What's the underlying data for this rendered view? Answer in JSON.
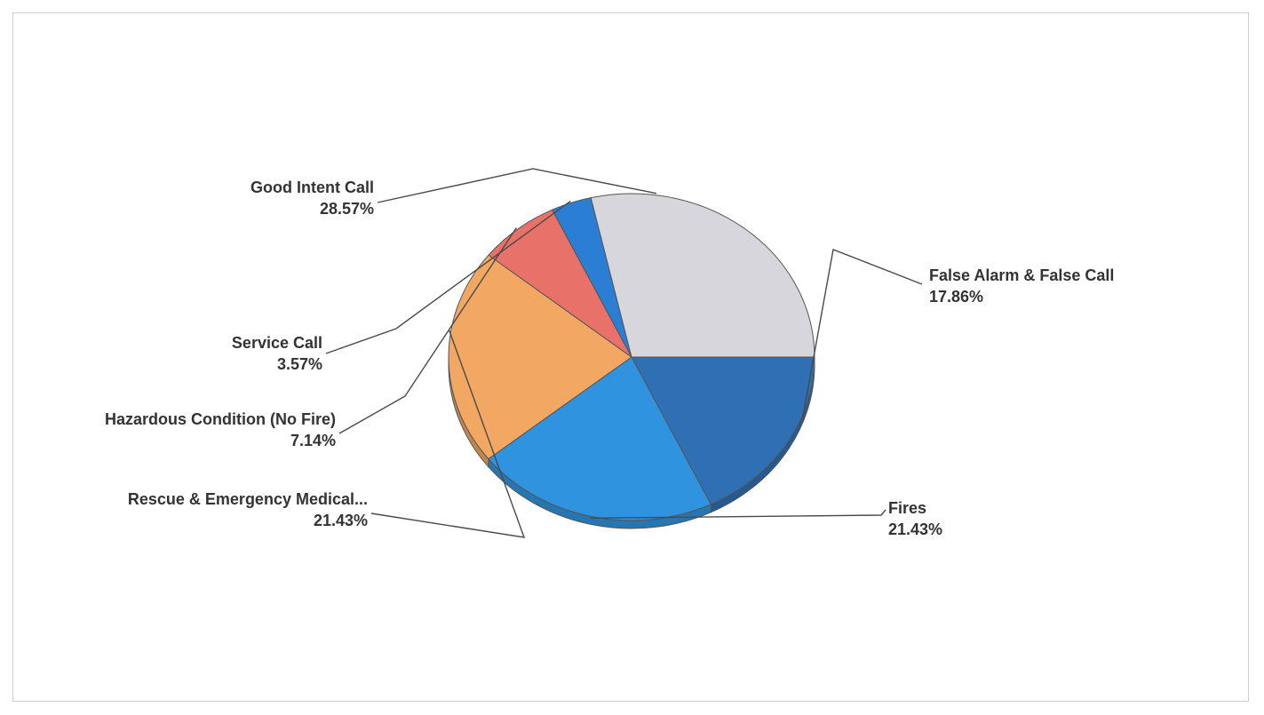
{
  "chart_data": {
    "type": "pie",
    "title": "",
    "slices": [
      {
        "label": "False Alarm & False Call",
        "value": 17.86,
        "pct_label": "17.86%",
        "color": "#2f6fb3"
      },
      {
        "label": "Fires",
        "value": 21.43,
        "pct_label": "21.43%",
        "color": "#2f93df"
      },
      {
        "label": "Rescue & Emergency Medical...",
        "value": 21.43,
        "pct_label": "21.43%",
        "color": "#f2a863"
      },
      {
        "label": "Hazardous Condition (No Fire)",
        "value": 7.14,
        "pct_label": "7.14%",
        "color": "#e8726a"
      },
      {
        "label": "Service Call",
        "value": 3.57,
        "pct_label": "3.57%",
        "color": "#2a7fd4"
      },
      {
        "label": "Good Intent Call",
        "value": 28.57,
        "pct_label": "28.57%",
        "color": "#d6d6dc"
      }
    ],
    "start_angle": "east, clockwise",
    "legend": "none (labels with leader lines)"
  }
}
